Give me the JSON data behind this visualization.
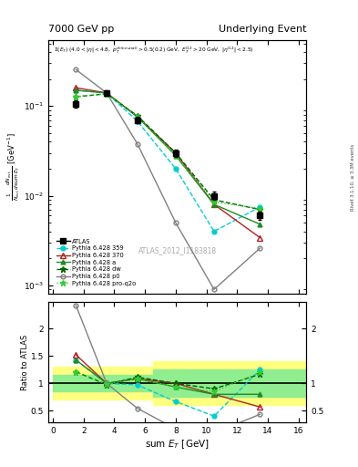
{
  "title_left": "7000 GeV pp",
  "title_right": "Underlying Event",
  "watermark": "ATLAS_2012_I1183818",
  "right_label": "Rivet 3.1.10, ≥ 3.3M events",
  "atlas_x": [
    1.5,
    3.5,
    5.5,
    8.0,
    10.5,
    13.5
  ],
  "atlas_y": [
    0.105,
    0.14,
    0.07,
    0.03,
    0.01,
    0.006
  ],
  "atlas_yerr": [
    0.01,
    0.01,
    0.006,
    0.003,
    0.001,
    0.0006
  ],
  "p359_x": [
    1.5,
    3.5,
    5.5,
    8.0,
    10.5,
    13.5
  ],
  "p359_y": [
    0.15,
    0.14,
    0.068,
    0.02,
    0.004,
    0.0075
  ],
  "p359_color": "#00ced1",
  "p370_x": [
    1.5,
    3.5,
    5.5,
    8.0,
    10.5,
    13.5
  ],
  "p370_y": [
    0.16,
    0.14,
    0.076,
    0.03,
    0.008,
    0.0034
  ],
  "p370_color": "#b22222",
  "pa_x": [
    1.5,
    3.5,
    5.5,
    8.0,
    10.5,
    13.5
  ],
  "pa_y": [
    0.15,
    0.14,
    0.076,
    0.028,
    0.008,
    0.0048
  ],
  "pa_color": "#228B22",
  "pdw_x": [
    1.5,
    3.5,
    5.5,
    8.0,
    10.5,
    13.5
  ],
  "pdw_y": [
    0.127,
    0.137,
    0.078,
    0.03,
    0.009,
    0.007
  ],
  "pdw_color": "#006400",
  "pp0_x": [
    1.5,
    3.5,
    5.5,
    8.0,
    10.5,
    13.5
  ],
  "pp0_y": [
    0.255,
    0.14,
    0.038,
    0.005,
    0.0009,
    0.0026
  ],
  "pp0_color": "#808080",
  "pproq2o_x": [
    1.5,
    3.5,
    5.5,
    8.0,
    10.5,
    13.5
  ],
  "pproq2o_y": [
    0.127,
    0.138,
    0.076,
    0.028,
    0.0085,
    0.0072
  ],
  "pproq2o_color": "#32cd32",
  "band_outer_color": "#FFFF80",
  "band_inner_color": "#90EE90",
  "band_edges": [
    0.0,
    4.5,
    6.5,
    9.0,
    16.5
  ],
  "band_outer_low": [
    0.7,
    0.7,
    0.6,
    0.6,
    0.6
  ],
  "band_outer_high": [
    1.3,
    1.3,
    1.4,
    1.4,
    1.4
  ],
  "band_inner_low": [
    0.85,
    0.85,
    0.75,
    0.75,
    0.75
  ],
  "band_inner_high": [
    1.15,
    1.15,
    1.25,
    1.25,
    1.25
  ],
  "ylim_main": [
    0.0008,
    0.55
  ],
  "ylim_ratio": [
    0.28,
    2.5
  ],
  "xlim": [
    -0.3,
    16.5
  ]
}
